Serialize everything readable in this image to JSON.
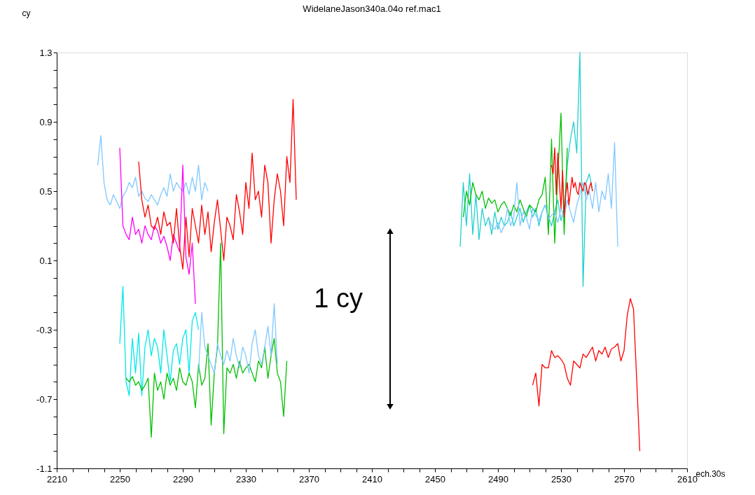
{
  "chart_data": {
    "type": "line",
    "title": "WidelaneJason340a.04o ref.mac1",
    "xlabel": "ech.30s",
    "ylabel": "cy",
    "xlim": [
      2210,
      2610
    ],
    "ylim": [
      -1.1,
      1.3
    ],
    "xticks": [
      2210,
      {
        "value": 2220,
        "label": null
      },
      {
        "value": 2230,
        "label": null
      },
      {
        "value": 2240,
        "label": null
      },
      2250,
      {
        "value": 2260,
        "label": null
      },
      {
        "value": 2270,
        "label": null
      },
      {
        "value": 2280,
        "label": null
      },
      2290,
      {
        "value": 2300,
        "label": null
      },
      {
        "value": 2310,
        "label": null
      },
      {
        "value": 2320,
        "label": null
      },
      2330,
      {
        "value": 2340,
        "label": null
      },
      {
        "value": 2350,
        "label": null
      },
      {
        "value": 2360,
        "label": null
      },
      2370,
      {
        "value": 2380,
        "label": null
      },
      {
        "value": 2390,
        "label": null
      },
      {
        "value": 2400,
        "label": null
      },
      2410,
      {
        "value": 2420,
        "label": null
      },
      {
        "value": 2430,
        "label": null
      },
      {
        "value": 2440,
        "label": null
      },
      2450,
      {
        "value": 2460,
        "label": null
      },
      {
        "value": 2470,
        "label": null
      },
      {
        "value": 2480,
        "label": null
      },
      2490,
      {
        "value": 2500,
        "label": null
      },
      {
        "value": 2510,
        "label": null
      },
      {
        "value": 2520,
        "label": null
      },
      2530,
      {
        "value": 2540,
        "label": null
      },
      {
        "value": 2550,
        "label": null
      },
      {
        "value": 2560,
        "label": null
      },
      2570,
      {
        "value": 2580,
        "label": null
      },
      {
        "value": 2590,
        "label": null
      },
      {
        "value": 2600,
        "label": null
      },
      2610
    ],
    "yticks": [
      -1.1,
      {
        "value": -1.0,
        "label": null
      },
      {
        "value": -0.9,
        "label": null
      },
      {
        "value": -0.8,
        "label": null
      },
      -0.7,
      {
        "value": -0.6,
        "label": null
      },
      {
        "value": -0.5,
        "label": null
      },
      {
        "value": -0.4,
        "label": null
      },
      -0.3,
      {
        "value": -0.2,
        "label": null
      },
      {
        "value": -0.1,
        "label": null
      },
      {
        "value": 0.0,
        "label": null
      },
      0.1,
      {
        "value": 0.2,
        "label": null
      },
      {
        "value": 0.3,
        "label": null
      },
      {
        "value": 0.4,
        "label": null
      },
      0.5,
      {
        "value": 0.6,
        "label": null
      },
      {
        "value": 0.7,
        "label": null
      },
      {
        "value": 0.8,
        "label": null
      },
      0.9,
      {
        "value": 1.0,
        "label": null
      },
      {
        "value": 1.1,
        "label": null
      },
      {
        "value": 1.2,
        "label": null
      },
      1.3
    ],
    "grid": false,
    "legend": false,
    "line_style": "solid",
    "marker": "none",
    "annotations": [
      "1 cy"
    ],
    "series": [
      {
        "color": "#80c8ff",
        "x": [
          2236,
          2238,
          2240,
          2242,
          2244,
          2246,
          2248,
          2250,
          2252,
          2254,
          2256,
          2258,
          2260,
          2262,
          2264,
          2266,
          2268,
          2270,
          2272,
          2274,
          2276,
          2278,
          2280,
          2282,
          2284,
          2286,
          2288,
          2290,
          2292,
          2294,
          2296,
          2298,
          2300,
          2302,
          2304,
          2306
        ],
        "values": [
          0.65,
          0.82,
          0.55,
          0.45,
          0.42,
          0.48,
          0.44,
          0.4,
          0.47,
          0.5,
          0.55,
          0.52,
          0.58,
          0.47,
          0.5,
          0.46,
          0.44,
          0.48,
          0.45,
          0.42,
          0.48,
          0.52,
          0.47,
          0.6,
          0.5,
          0.55,
          0.52,
          0.5,
          0.55,
          0.48,
          0.58,
          0.5,
          0.65,
          0.45,
          0.55,
          0.5
        ]
      },
      {
        "color": "#ff00ff",
        "x": [
          2250,
          2252,
          2254,
          2256,
          2258,
          2260,
          2262,
          2264,
          2266,
          2268,
          2270,
          2272,
          2274,
          2276,
          2278,
          2280,
          2282,
          2284,
          2286,
          2288,
          2290,
          2292,
          2294,
          2296,
          2298
        ],
        "values": [
          0.75,
          0.3,
          0.25,
          0.22,
          0.35,
          0.25,
          0.28,
          0.2,
          0.3,
          0.25,
          0.22,
          0.3,
          0.27,
          0.2,
          0.24,
          0.18,
          0.1,
          0.25,
          0.2,
          0.15,
          0.65,
          0.12,
          0.02,
          0.2,
          -0.15
        ]
      },
      {
        "color": "#ff0000",
        "x": [
          2262,
          2264,
          2266,
          2268,
          2270,
          2272,
          2274,
          2276,
          2278,
          2280,
          2282,
          2284,
          2286,
          2288,
          2290,
          2292,
          2294,
          2296,
          2298,
          2300,
          2302,
          2304,
          2306,
          2308,
          2310,
          2312,
          2314,
          2316,
          2318,
          2320,
          2322,
          2324,
          2326,
          2328,
          2330,
          2332,
          2334,
          2336,
          2338,
          2340,
          2342,
          2344,
          2346,
          2348,
          2350,
          2352,
          2354,
          2356,
          2358,
          2360,
          2362
        ],
        "values": [
          0.67,
          0.45,
          0.35,
          0.42,
          0.3,
          0.28,
          0.35,
          0.25,
          0.38,
          0.3,
          0.32,
          0.2,
          0.4,
          0.18,
          0.05,
          0.35,
          0.12,
          0.4,
          0.3,
          0.2,
          0.42,
          0.25,
          0.38,
          0.15,
          0.32,
          0.45,
          0.28,
          0.1,
          0.35,
          0.3,
          0.22,
          0.48,
          0.38,
          0.25,
          0.55,
          0.4,
          0.72,
          0.45,
          0.5,
          0.35,
          0.65,
          0.55,
          0.2,
          0.45,
          0.6,
          0.5,
          0.3,
          0.7,
          0.55,
          1.03,
          0.45
        ]
      },
      {
        "color": "#00e8e8",
        "x": [
          2250,
          2252,
          2254,
          2256,
          2258,
          2260,
          2262,
          2264,
          2266,
          2268,
          2270,
          2272,
          2274,
          2276,
          2278,
          2280,
          2282,
          2284,
          2286,
          2288,
          2290,
          2292,
          2294,
          2296,
          2298,
          2300
        ],
        "values": [
          -0.38,
          -0.05,
          -0.6,
          -0.68,
          -0.35,
          -0.55,
          -0.32,
          -0.68,
          -0.4,
          -0.3,
          -0.45,
          -0.35,
          -0.4,
          -0.55,
          -0.3,
          -0.45,
          -0.6,
          -0.42,
          -0.38,
          -0.5,
          -0.35,
          -0.3,
          -0.55,
          -0.25,
          -0.2,
          -0.3
        ]
      },
      {
        "color": "#00c000",
        "x": [
          2254,
          2256,
          2258,
          2260,
          2262,
          2264,
          2266,
          2268,
          2270,
          2272,
          2274,
          2276,
          2278,
          2280,
          2282,
          2284,
          2286,
          2288,
          2290,
          2292,
          2294,
          2296,
          2298,
          2300,
          2302,
          2304,
          2306,
          2308,
          2310,
          2312,
          2314,
          2316,
          2318,
          2320,
          2322,
          2324,
          2326,
          2328,
          2330,
          2332,
          2334,
          2336,
          2338,
          2340,
          2342,
          2344,
          2346,
          2348,
          2350,
          2352,
          2354,
          2356
        ],
        "values": [
          -0.58,
          -0.6,
          -0.57,
          -0.62,
          -0.6,
          -0.65,
          -0.62,
          -0.58,
          -0.92,
          -0.55,
          -0.65,
          -0.6,
          -0.7,
          -0.55,
          -0.62,
          -0.58,
          -0.65,
          -0.52,
          -0.6,
          -0.62,
          -0.55,
          -0.6,
          -0.75,
          -0.5,
          -0.62,
          -0.58,
          -0.38,
          -0.85,
          -0.55,
          -0.4,
          0.2,
          -0.9,
          -0.52,
          -0.55,
          -0.5,
          -0.58,
          -0.48,
          -0.55,
          -0.52,
          -0.5,
          -0.55,
          -0.6,
          -0.48,
          -0.52,
          -0.4,
          -0.58,
          -0.45,
          -0.35,
          -0.55,
          -0.6,
          -0.8,
          -0.48
        ]
      },
      {
        "color": "#80c8ff",
        "x": [
          2300,
          2302,
          2304,
          2306,
          2308,
          2310,
          2312,
          2314,
          2316,
          2318,
          2320,
          2322,
          2324,
          2326,
          2328,
          2330,
          2332,
          2334,
          2336,
          2338,
          2340,
          2342,
          2344,
          2346,
          2348,
          2350
        ],
        "values": [
          -0.55,
          -0.2,
          -0.4,
          -0.45,
          -0.5,
          -0.55,
          -0.38,
          -0.45,
          -0.5,
          -0.42,
          -0.48,
          -0.35,
          -0.45,
          -0.52,
          -0.4,
          -0.45,
          -0.55,
          -0.38,
          -0.3,
          -0.45,
          -0.5,
          -0.4,
          -0.28,
          -0.45,
          -0.15,
          -0.5
        ]
      },
      {
        "color": "#20d0d0",
        "x": [
          2466,
          2468,
          2470,
          2472,
          2474,
          2476,
          2478,
          2480,
          2482,
          2484,
          2486,
          2488,
          2490,
          2492,
          2494,
          2496,
          2498,
          2500,
          2502,
          2504,
          2506,
          2508,
          2510,
          2512,
          2514,
          2516,
          2518,
          2520,
          2522,
          2524,
          2526,
          2528,
          2530,
          2532,
          2534,
          2536,
          2538,
          2540,
          2542,
          2544,
          2546,
          2548,
          2550
        ],
        "values": [
          0.18,
          0.55,
          0.3,
          0.6,
          0.25,
          0.48,
          0.22,
          0.4,
          0.3,
          0.35,
          0.25,
          0.38,
          0.28,
          0.35,
          0.3,
          0.32,
          0.38,
          0.3,
          0.35,
          0.4,
          0.32,
          0.38,
          0.42,
          0.35,
          0.4,
          0.3,
          0.38,
          0.42,
          0.35,
          0.3,
          0.38,
          0.45,
          0.33,
          0.4,
          0.65,
          0.8,
          0.9,
          0.72,
          1.3,
          -0.05,
          0.55,
          0.6,
          0.5
        ]
      },
      {
        "color": "#00c000",
        "x": [
          2468,
          2470,
          2472,
          2474,
          2476,
          2478,
          2480,
          2482,
          2484,
          2486,
          2488,
          2490,
          2492,
          2494,
          2496,
          2498,
          2500,
          2502,
          2504,
          2506,
          2508,
          2510,
          2512,
          2514,
          2516,
          2518,
          2520,
          2522,
          2524,
          2526,
          2528,
          2530,
          2532,
          2534
        ],
        "values": [
          0.35,
          0.5,
          0.42,
          0.55,
          0.48,
          0.45,
          0.5,
          0.4,
          0.46,
          0.43,
          0.45,
          0.38,
          0.42,
          0.44,
          0.4,
          0.36,
          0.42,
          0.38,
          0.45,
          0.4,
          0.35,
          0.42,
          0.4,
          0.38,
          0.45,
          0.48,
          0.58,
          0.25,
          0.8,
          0.2,
          0.6,
          0.95,
          0.25,
          0.75
        ]
      },
      {
        "color": "#80c8ff",
        "x": [
          2484,
          2486,
          2488,
          2490,
          2492,
          2494,
          2496,
          2498,
          2500,
          2502,
          2504,
          2506,
          2508,
          2510,
          2512,
          2514,
          2516,
          2518,
          2520,
          2522,
          2524,
          2526,
          2528,
          2530,
          2532,
          2534,
          2536,
          2538,
          2540,
          2542,
          2544,
          2546,
          2548,
          2550,
          2552,
          2554,
          2556,
          2558,
          2560,
          2562,
          2564,
          2566
        ],
        "values": [
          0.35,
          0.3,
          0.28,
          0.32,
          0.26,
          0.3,
          0.4,
          0.3,
          0.35,
          0.55,
          0.3,
          0.38,
          0.35,
          0.28,
          0.4,
          0.36,
          0.33,
          0.38,
          0.42,
          0.34,
          0.36,
          0.38,
          0.32,
          0.4,
          0.35,
          0.45,
          0.38,
          0.32,
          0.42,
          0.48,
          0.55,
          0.45,
          0.5,
          0.4,
          0.55,
          0.38,
          0.5,
          0.45,
          0.6,
          0.4,
          0.78,
          0.18
        ]
      },
      {
        "color": "#ff0000",
        "x": [
          2524,
          2525,
          2526,
          2527,
          2528,
          2529,
          2530,
          2531,
          2532,
          2533,
          2534,
          2535,
          2536,
          2537,
          2538,
          2539,
          2540,
          2541,
          2542,
          2543,
          2544,
          2545,
          2546,
          2547,
          2548,
          2549,
          2550
        ],
        "values": [
          0.65,
          0.6,
          0.75,
          0.48,
          0.72,
          0.55,
          0.4,
          0.62,
          0.35,
          0.48,
          0.55,
          0.42,
          0.5,
          0.58,
          0.52,
          0.55,
          0.5,
          0.48,
          0.55,
          0.52,
          0.5,
          0.55,
          0.53,
          0.48,
          0.52,
          0.55,
          0.5
        ]
      },
      {
        "color": "#ff0000",
        "x": [
          2512,
          2514,
          2516,
          2518,
          2520,
          2522,
          2524,
          2526,
          2528,
          2530,
          2532,
          2534,
          2536,
          2538,
          2540,
          2542,
          2544,
          2546,
          2548,
          2550,
          2552,
          2554,
          2556,
          2558,
          2560,
          2562,
          2564,
          2566,
          2568,
          2570,
          2572,
          2574,
          2576,
          2578,
          2580
        ],
        "values": [
          -0.62,
          -0.55,
          -0.74,
          -0.5,
          -0.52,
          -0.52,
          -0.42,
          -0.46,
          -0.45,
          -0.47,
          -0.5,
          -0.58,
          -0.62,
          -0.48,
          -0.5,
          -0.52,
          -0.44,
          -0.46,
          -0.43,
          -0.4,
          -0.48,
          -0.42,
          -0.44,
          -0.4,
          -0.46,
          -0.41,
          -0.4,
          -0.38,
          -0.48,
          -0.42,
          -0.22,
          -0.12,
          -0.18,
          -0.58,
          -1.0
        ]
      }
    ]
  }
}
